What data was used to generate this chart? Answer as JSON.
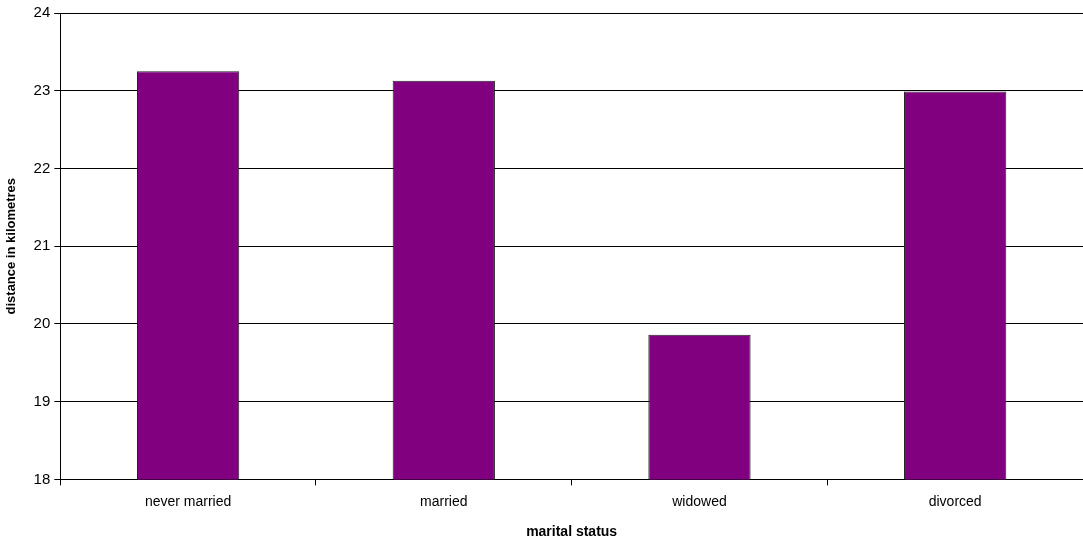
{
  "chart_data": {
    "type": "bar",
    "xlabel": "marital status",
    "ylabel": "distance in kilometres",
    "categories": [
      "never married",
      "married",
      "widowed",
      "divorced"
    ],
    "values": [
      23.25,
      23.13,
      19.86,
      22.99
    ],
    "color": "#800080",
    "ylim": [
      18,
      24
    ],
    "yticks": [
      18,
      19,
      20,
      21,
      22,
      23,
      24
    ],
    "grid": "y"
  }
}
